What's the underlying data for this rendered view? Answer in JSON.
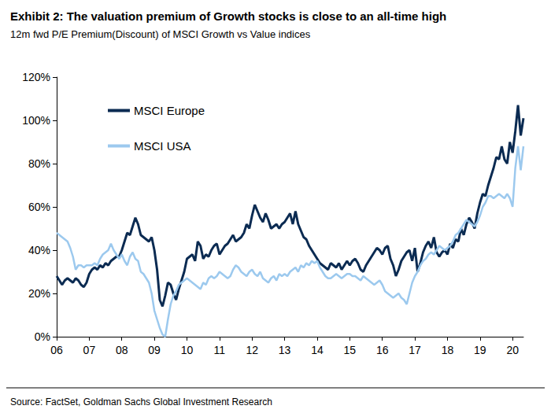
{
  "chart_data": {
    "type": "line",
    "title": "Exhibit 2: The valuation premium of Growth stocks is close to an all-time high",
    "subtitle": "12m fwd P/E Premium(Discount) of MSCI Growth vs Value indices",
    "source": "Source: FactSet, Goldman Sachs Global Investment Research",
    "categories": [
      "06",
      null,
      null,
      null,
      null,
      null,
      null,
      null,
      null,
      null,
      null,
      null,
      "07",
      null,
      null,
      null,
      null,
      null,
      null,
      null,
      null,
      null,
      null,
      null,
      "08",
      null,
      null,
      null,
      null,
      null,
      null,
      null,
      null,
      null,
      null,
      null,
      "09",
      null,
      null,
      null,
      null,
      null,
      null,
      null,
      null,
      null,
      null,
      null,
      "10",
      null,
      null,
      null,
      null,
      null,
      null,
      null,
      null,
      null,
      null,
      null,
      "11",
      null,
      null,
      null,
      null,
      null,
      null,
      null,
      null,
      null,
      null,
      null,
      "12",
      null,
      null,
      null,
      null,
      null,
      null,
      null,
      null,
      null,
      null,
      null,
      "13",
      null,
      null,
      null,
      null,
      null,
      null,
      null,
      null,
      null,
      null,
      null,
      "14",
      null,
      null,
      null,
      null,
      null,
      null,
      null,
      null,
      null,
      null,
      null,
      "15",
      null,
      null,
      null,
      null,
      null,
      null,
      null,
      null,
      null,
      null,
      null,
      "16",
      null,
      null,
      null,
      null,
      null,
      null,
      null,
      null,
      null,
      null,
      null,
      "17",
      null,
      null,
      null,
      null,
      null,
      null,
      null,
      null,
      null,
      null,
      null,
      "18",
      null,
      null,
      null,
      null,
      null,
      null,
      null,
      null,
      null,
      null,
      null,
      "19",
      null,
      null,
      null,
      null,
      null,
      null,
      null,
      null,
      null,
      null,
      null,
      "20",
      null,
      null,
      null,
      null
    ],
    "series": [
      {
        "name": "MSCI Europe",
        "color": "#0b2b52",
        "values": [
          28,
          26,
          24,
          26,
          27,
          26,
          25,
          27,
          26,
          24,
          23,
          25,
          29,
          31,
          32,
          31,
          33,
          32,
          34,
          33,
          35,
          36,
          37,
          37,
          40,
          44,
          48,
          47,
          51,
          55,
          52,
          47,
          46,
          45,
          44,
          46,
          40,
          31,
          17,
          14,
          19,
          25,
          24,
          20,
          17,
          22,
          26,
          30,
          36,
          37,
          38,
          35,
          44,
          42,
          36,
          38,
          37,
          40,
          42,
          43,
          38,
          40,
          42,
          43,
          45,
          47,
          44,
          45,
          46,
          48,
          52,
          50,
          56,
          61,
          58,
          55,
          53,
          57,
          54,
          50,
          51,
          52,
          50,
          52,
          53,
          55,
          57,
          52,
          58,
          52,
          49,
          46,
          45,
          42,
          40,
          38,
          36,
          34,
          33,
          32,
          31,
          34,
          33,
          32,
          34,
          31,
          33,
          35,
          33,
          35,
          36,
          34,
          31,
          30,
          33,
          35,
          37,
          39,
          41,
          40,
          38,
          41,
          42,
          36,
          33,
          28,
          31,
          35,
          37,
          39,
          40,
          35,
          41,
          30,
          34,
          39,
          42,
          44,
          41,
          46,
          39,
          37,
          39,
          40,
          38,
          43,
          41,
          45,
          44,
          50,
          47,
          52,
          55,
          53,
          50,
          57,
          62,
          66,
          65,
          70,
          74,
          78,
          83,
          82,
          88,
          82,
          80,
          90,
          85,
          95,
          107,
          93,
          101
        ]
      },
      {
        "name": "MSCI USA",
        "color": "#9cc9ee",
        "values": [
          48,
          47,
          46,
          45,
          44,
          41,
          37,
          31,
          33,
          33,
          32,
          33,
          33,
          33,
          34,
          33,
          36,
          38,
          39,
          40,
          43,
          40,
          38,
          36,
          38,
          35,
          33,
          37,
          39,
          36,
          35,
          30,
          29,
          27,
          25,
          20,
          12,
          8,
          4,
          1,
          0,
          8,
          15,
          19,
          21,
          24,
          25,
          26,
          27,
          26,
          25,
          24,
          23,
          22,
          25,
          24,
          27,
          28,
          27,
          28,
          30,
          29,
          28,
          27,
          28,
          31,
          33,
          32,
          30,
          29,
          28,
          30,
          31,
          29,
          28,
          30,
          27,
          26,
          25,
          27,
          28,
          26,
          29,
          28,
          29,
          28,
          30,
          31,
          32,
          30,
          33,
          32,
          34,
          33,
          35,
          34,
          35,
          32,
          30,
          28,
          27,
          27,
          28,
          29,
          28,
          27,
          28,
          29,
          29,
          28,
          28,
          27,
          26,
          28,
          27,
          26,
          25,
          24,
          25,
          26,
          24,
          21,
          20,
          19,
          18,
          19,
          20,
          18,
          17,
          15,
          20,
          25,
          28,
          30,
          33,
          35,
          36,
          38,
          39,
          38,
          40,
          42,
          41,
          40,
          41,
          42,
          44,
          47,
          48,
          50,
          52,
          54,
          53,
          52,
          51,
          53,
          56,
          60,
          62,
          65,
          65,
          64,
          65,
          66,
          65,
          64,
          66,
          64,
          60,
          78,
          88,
          77,
          88
        ]
      }
    ],
    "ylim": [
      0,
      120
    ],
    "yticks": [
      {
        "value": 0,
        "label": "0%"
      },
      {
        "value": 20,
        "label": "20%"
      },
      {
        "value": 40,
        "label": "40%"
      },
      {
        "value": 60,
        "label": "60%"
      },
      {
        "value": 80,
        "label": "80%"
      },
      {
        "value": 100,
        "label": "100%"
      },
      {
        "value": 120,
        "label": "120%"
      }
    ],
    "grid": false,
    "legend": "upper left"
  }
}
